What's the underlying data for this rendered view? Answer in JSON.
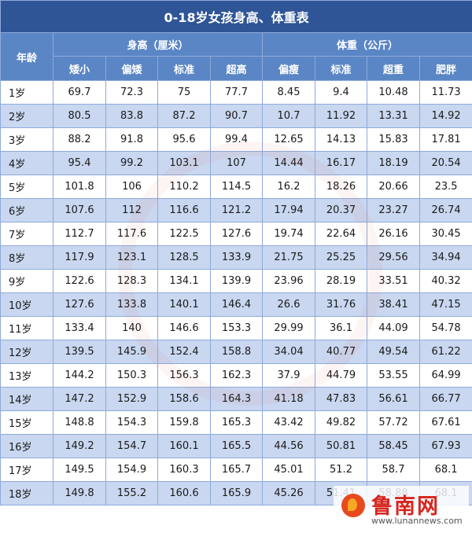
{
  "title": "0-18岁女孩身高、体重表",
  "header": {
    "age": "年龄",
    "height_group": "身高（厘米）",
    "weight_group": "体重（公斤）",
    "height_cols": [
      "矮小",
      "偏矮",
      "标准",
      "超高"
    ],
    "weight_cols": [
      "偏瘦",
      "标准",
      "超重",
      "肥胖"
    ]
  },
  "rows": [
    {
      "age": "1岁",
      "values": [
        "69.7",
        "72.3",
        "75",
        "77.7",
        "8.45",
        "9.4",
        "10.48",
        "11.73"
      ]
    },
    {
      "age": "2岁",
      "values": [
        "80.5",
        "83.8",
        "87.2",
        "90.7",
        "10.7",
        "11.92",
        "13.31",
        "14.92"
      ]
    },
    {
      "age": "3岁",
      "values": [
        "88.2",
        "91.8",
        "95.6",
        "99.4",
        "12.65",
        "14.13",
        "15.83",
        "17.81"
      ]
    },
    {
      "age": "4岁",
      "values": [
        "95.4",
        "99.2",
        "103.1",
        "107",
        "14.44",
        "16.17",
        "18.19",
        "20.54"
      ]
    },
    {
      "age": "5岁",
      "values": [
        "101.8",
        "106",
        "110.2",
        "114.5",
        "16.2",
        "18.26",
        "20.66",
        "23.5"
      ]
    },
    {
      "age": "6岁",
      "values": [
        "107.6",
        "112",
        "116.6",
        "121.2",
        "17.94",
        "20.37",
        "23.27",
        "26.74"
      ]
    },
    {
      "age": "7岁",
      "values": [
        "112.7",
        "117.6",
        "122.5",
        "127.6",
        "19.74",
        "22.64",
        "26.16",
        "30.45"
      ]
    },
    {
      "age": "8岁",
      "values": [
        "117.9",
        "123.1",
        "128.5",
        "133.9",
        "21.75",
        "25.25",
        "29.56",
        "34.94"
      ]
    },
    {
      "age": "9岁",
      "values": [
        "122.6",
        "128.3",
        "134.1",
        "139.9",
        "23.96",
        "28.19",
        "33.51",
        "40.32"
      ]
    },
    {
      "age": "10岁",
      "values": [
        "127.6",
        "133.8",
        "140.1",
        "146.4",
        "26.6",
        "31.76",
        "38.41",
        "47.15"
      ]
    },
    {
      "age": "11岁",
      "values": [
        "133.4",
        "140",
        "146.6",
        "153.3",
        "29.99",
        "36.1",
        "44.09",
        "54.78"
      ]
    },
    {
      "age": "12岁",
      "values": [
        "139.5",
        "145.9",
        "152.4",
        "158.8",
        "34.04",
        "40.77",
        "49.54",
        "61.22"
      ]
    },
    {
      "age": "13岁",
      "values": [
        "144.2",
        "150.3",
        "156.3",
        "162.3",
        "37.9",
        "44.79",
        "53.55",
        "64.99"
      ]
    },
    {
      "age": "14岁",
      "values": [
        "147.2",
        "152.9",
        "158.6",
        "164.3",
        "41.18",
        "47.83",
        "56.61",
        "66.77"
      ]
    },
    {
      "age": "15岁",
      "values": [
        "148.8",
        "154.3",
        "159.8",
        "165.3",
        "43.42",
        "49.82",
        "57.72",
        "67.61"
      ]
    },
    {
      "age": "16岁",
      "values": [
        "149.2",
        "154.7",
        "160.1",
        "165.5",
        "44.56",
        "50.81",
        "58.45",
        "67.93"
      ]
    },
    {
      "age": "17岁",
      "values": [
        "149.5",
        "154.9",
        "160.3",
        "165.7",
        "45.01",
        "51.2",
        "58.7",
        "68.1"
      ]
    },
    {
      "age": "18岁",
      "values": [
        "149.8",
        "155.2",
        "160.6",
        "165.9",
        "45.26",
        "51.41",
        "58.88",
        "68.1"
      ]
    }
  ],
  "watermark": {
    "name": "鲁南网",
    "url": "www.lunannews.com"
  },
  "colors": {
    "title_bg": "#2f5597",
    "header_bg": "#5b86c5",
    "stripe": "#c9d7f0",
    "border": "#8eaadb",
    "logo_red": "#d7261e"
  }
}
